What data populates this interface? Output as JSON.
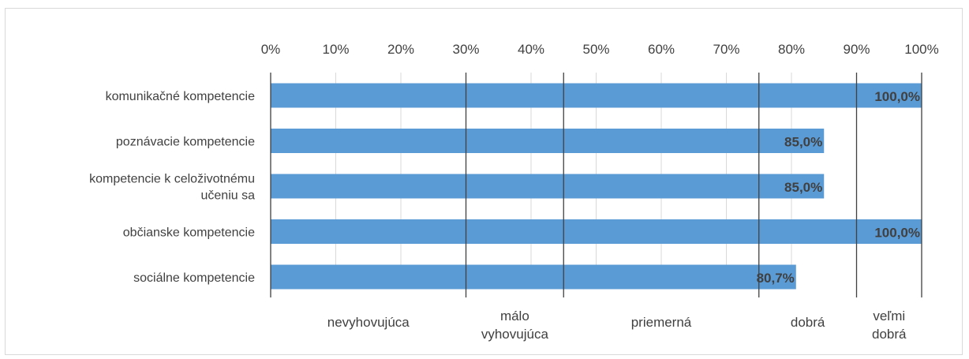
{
  "chart_data": {
    "type": "bar",
    "orientation": "horizontal",
    "categories": [
      "komunikačné kompetencie",
      "poznávacie kompetencie",
      "kompetencie k celoživotnému učeniu sa",
      "občianske kompetencie",
      "sociálne kompetencie"
    ],
    "category_lines": [
      [
        "komunikačné kompetencie"
      ],
      [
        "poznávacie kompetencie"
      ],
      [
        "kompetencie k celoživotnému",
        "učeniu sa"
      ],
      [
        "občianske kompetencie"
      ],
      [
        "sociálne kompetencie"
      ]
    ],
    "values": [
      100,
      85,
      85,
      100,
      80.7
    ],
    "data_labels": [
      "100,0%",
      "85,0%",
      "85,0%",
      "100,0%",
      "80,7%"
    ],
    "xlim": [
      0,
      100
    ],
    "x_ticks": [
      0,
      10,
      20,
      30,
      40,
      50,
      60,
      70,
      80,
      90,
      100
    ],
    "x_tick_labels": [
      "0%",
      "10%",
      "20%",
      "30%",
      "40%",
      "50%",
      "60%",
      "70%",
      "80%",
      "90%",
      "100%"
    ],
    "axis_position": "top",
    "grid": true,
    "bar_color": "#5b9bd5",
    "band_boundaries": [
      0,
      30,
      45,
      75,
      90,
      100
    ],
    "bands": [
      {
        "lines": [
          "nevyhovujúca"
        ]
      },
      {
        "lines": [
          "málo",
          "vyhovujúca"
        ]
      },
      {
        "lines": [
          "priemerná"
        ]
      },
      {
        "lines": [
          "dobrá"
        ]
      },
      {
        "lines": [
          "veľmi",
          "dobrá"
        ]
      }
    ],
    "title": "",
    "xlabel": "",
    "ylabel": ""
  }
}
